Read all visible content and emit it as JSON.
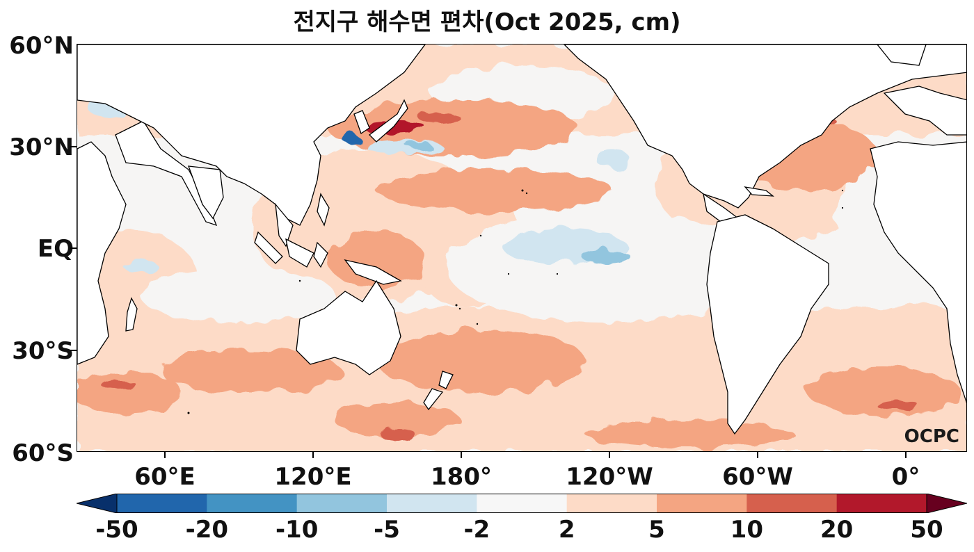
{
  "title": "전지구 해수면 편차(Oct 2025, cm)",
  "logo": "OCPC",
  "lat_labels": [
    "60°N",
    "30°N",
    "EQ",
    "30°S",
    "60°S"
  ],
  "lon_labels": [
    "60°E",
    "120°E",
    "180°",
    "120°W",
    "60°W",
    "0°"
  ],
  "colorbar": {
    "labels": [
      "-50",
      "-20",
      "-10",
      "-5",
      "-2",
      "2",
      "5",
      "10",
      "20",
      "50"
    ],
    "colors": [
      "#08306b",
      "#2166ac",
      "#4393c3",
      "#92c5de",
      "#d1e5f0",
      "#f7f7f7",
      "#fddbc7",
      "#f4a582",
      "#d6604d",
      "#b2182b",
      "#67001f"
    ]
  },
  "colors": {
    "land": "#ffffff",
    "ocean_neutral": "#f6f5f4",
    "coast": "#000000"
  }
}
